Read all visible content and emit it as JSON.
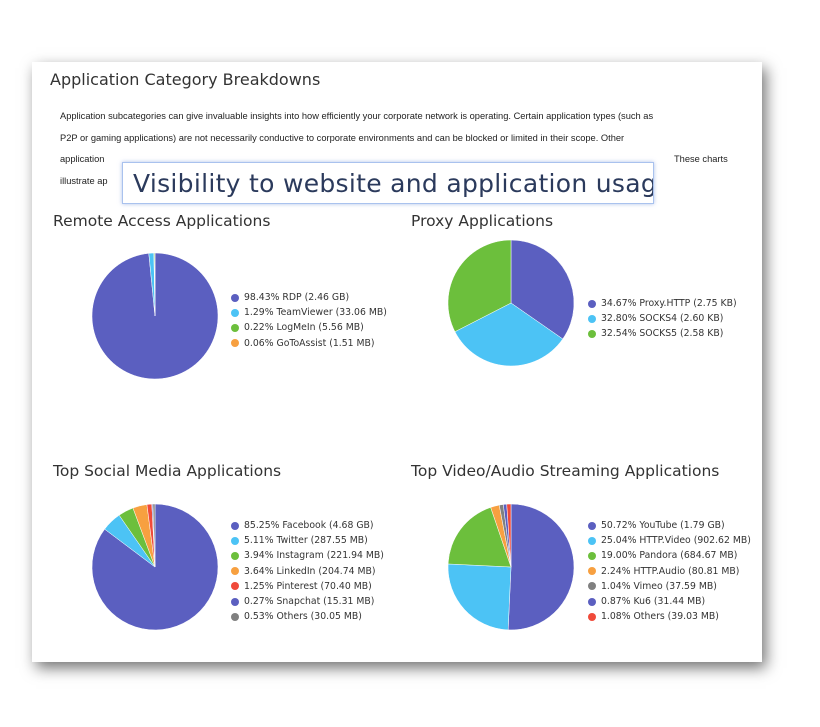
{
  "title": "Application Category Breakdowns",
  "paragraph": {
    "line1": "Application subcategories can give invaluable insights into how efficiently your corporate network is operating.  Certain application types (such as",
    "line2": "P2P or gaming applications) are not necessarily conductive to corporate environments and can be blocked or limited in their scope.  Other",
    "line3_start": "application",
    "line3_end": "These charts",
    "line4_start": "illustrate ap"
  },
  "overlay_caption": "Visibility to website and application usage",
  "colors": {
    "purple": "#5b5fc0",
    "blue": "#4cc3f5",
    "green": "#6cbf3c",
    "orange": "#f7a040",
    "red": "#f04a3a",
    "gray": "#808080"
  },
  "chart_data": [
    {
      "type": "pie",
      "title": "Remote Access Applications",
      "slices": [
        {
          "label": "98.43% RDP (2.46 GB)",
          "value": 98.43,
          "color": "#5b5fc0"
        },
        {
          "label": "1.29% TeamViewer (33.06 MB)",
          "value": 1.29,
          "color": "#4cc3f5"
        },
        {
          "label": "0.22% LogMeIn (5.56 MB)",
          "value": 0.22,
          "color": "#6cbf3c"
        },
        {
          "label": "0.06% GoToAssist (1.51 MB)",
          "value": 0.06,
          "color": "#f7a040"
        }
      ]
    },
    {
      "type": "pie",
      "title": "Proxy Applications",
      "slices": [
        {
          "label": "34.67% Proxy.HTTP (2.75 KB)",
          "value": 34.67,
          "color": "#5b5fc0"
        },
        {
          "label": "32.80% SOCKS4 (2.60 KB)",
          "value": 32.8,
          "color": "#4cc3f5"
        },
        {
          "label": "32.54% SOCKS5 (2.58 KB)",
          "value": 32.54,
          "color": "#6cbf3c"
        }
      ]
    },
    {
      "type": "pie",
      "title": "Top Social Media Applications",
      "slices": [
        {
          "label": "85.25% Facebook (4.68 GB)",
          "value": 85.25,
          "color": "#5b5fc0"
        },
        {
          "label": "5.11% Twitter (287.55 MB)",
          "value": 5.11,
          "color": "#4cc3f5"
        },
        {
          "label": "3.94% Instagram (221.94 MB)",
          "value": 3.94,
          "color": "#6cbf3c"
        },
        {
          "label": "3.64% LinkedIn (204.74 MB)",
          "value": 3.64,
          "color": "#f7a040"
        },
        {
          "label": "1.25% Pinterest (70.40 MB)",
          "value": 1.25,
          "color": "#f04a3a"
        },
        {
          "label": "0.27% Snapchat (15.31 MB)",
          "value": 0.27,
          "color": "#5b5fc0"
        },
        {
          "label": "0.53% Others (30.05 MB)",
          "value": 0.53,
          "color": "#808080"
        }
      ]
    },
    {
      "type": "pie",
      "title": "Top Video/Audio Streaming Applications",
      "slices": [
        {
          "label": "50.72% YouTube (1.79 GB)",
          "value": 50.72,
          "color": "#5b5fc0"
        },
        {
          "label": "25.04% HTTP.Video (902.62 MB)",
          "value": 25.04,
          "color": "#4cc3f5"
        },
        {
          "label": "19.00% Pandora (684.67 MB)",
          "value": 19.0,
          "color": "#6cbf3c"
        },
        {
          "label": "2.24% HTTP.Audio (80.81 MB)",
          "value": 2.24,
          "color": "#f7a040"
        },
        {
          "label": "1.04% Vimeo (37.59 MB)",
          "value": 1.04,
          "color": "#808080"
        },
        {
          "label": "0.87% Ku6 (31.44 MB)",
          "value": 0.87,
          "color": "#5b5fc0"
        },
        {
          "label": "1.08% Others (39.03 MB)",
          "value": 1.08,
          "color": "#f04a3a"
        }
      ]
    }
  ]
}
